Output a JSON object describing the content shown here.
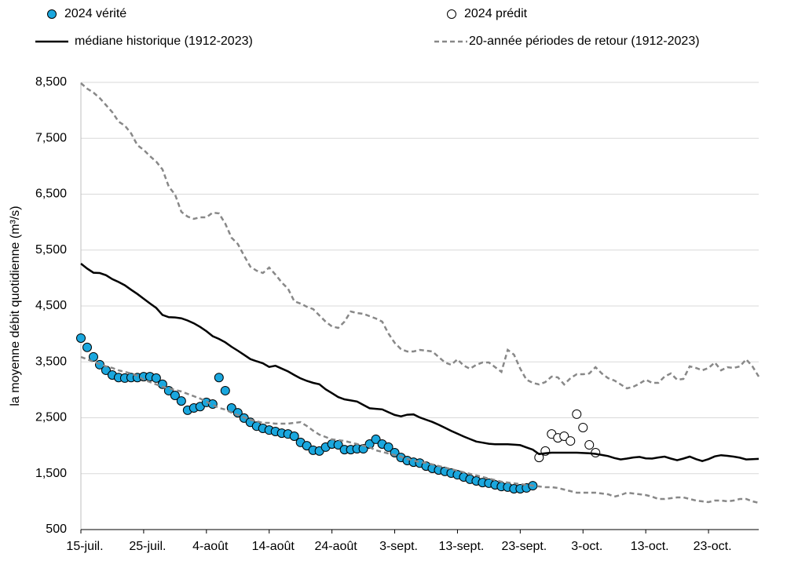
{
  "chart_data": {
    "type": "line",
    "ylabel": "la moyenne débit quotidienne (m³/s)",
    "ylim": [
      500,
      8500
    ],
    "yticks": [
      500,
      {
        "value": 1500,
        "label": "1,500"
      },
      {
        "value": 2500,
        "label": "2,500"
      },
      {
        "value": 3500,
        "label": "3,500"
      },
      {
        "value": 4500,
        "label": "4,500"
      },
      {
        "value": 5500,
        "label": "5,500"
      },
      {
        "value": 6500,
        "label": "6,500"
      },
      {
        "value": 7500,
        "label": "7,500"
      },
      {
        "value": 8500,
        "label": "8,500"
      }
    ],
    "grid": true,
    "categories": [
      "15-juil.",
      null,
      null,
      null,
      null,
      null,
      null,
      null,
      null,
      null,
      "25-juil.",
      null,
      null,
      null,
      null,
      null,
      null,
      null,
      null,
      null,
      "4-août",
      null,
      null,
      null,
      null,
      null,
      null,
      null,
      null,
      null,
      "14-août",
      null,
      null,
      null,
      null,
      null,
      null,
      null,
      null,
      null,
      "24-août",
      null,
      null,
      null,
      null,
      null,
      null,
      null,
      null,
      null,
      "3-sept.",
      null,
      null,
      null,
      null,
      null,
      null,
      null,
      null,
      null,
      "13-sept.",
      null,
      null,
      null,
      null,
      null,
      null,
      null,
      null,
      null,
      "23-sept.",
      null,
      null,
      null,
      null,
      null,
      null,
      null,
      null,
      null,
      "3-oct.",
      null,
      null,
      null,
      null,
      null,
      null,
      null,
      null,
      null,
      "13-oct.",
      null,
      null,
      null,
      null,
      null,
      null,
      null,
      null,
      null,
      "23-oct.",
      null,
      null,
      null,
      null,
      null,
      null,
      null,
      null
    ],
    "series": [
      {
        "name": "2024 vérité",
        "style": "marker-filled",
        "color": "#1aa7de",
        "values": [
          3925,
          3760,
          3590,
          3450,
          3350,
          3265,
          3220,
          3210,
          3220,
          3220,
          3235,
          3235,
          3210,
          3100,
          2985,
          2900,
          2800,
          2635,
          2675,
          2700,
          2775,
          2745,
          3220,
          2985,
          2675,
          2590,
          2495,
          2420,
          2350,
          2310,
          2280,
          2255,
          2225,
          2210,
          2170,
          2060,
          2000,
          1920,
          1905,
          1975,
          2030,
          2015,
          1930,
          1930,
          1945,
          1945,
          2030,
          2115,
          2030,
          1975,
          1875,
          1790,
          1735,
          1705,
          1690,
          1635,
          1595,
          1565,
          1540,
          1510,
          1480,
          1440,
          1400,
          1370,
          1340,
          1330,
          1300,
          1270,
          1260,
          1230,
          1230,
          1245,
          1285,
          null,
          null,
          null,
          null,
          null,
          null,
          null,
          null,
          null,
          null,
          null,
          null,
          null,
          null,
          null,
          null,
          null,
          null,
          null,
          null,
          null,
          null,
          null,
          null,
          null,
          null,
          null,
          null,
          null,
          null,
          null,
          null,
          null,
          null,
          null,
          null
        ]
      },
      {
        "name": "2024 prédit",
        "style": "marker-open",
        "color": "#000000",
        "values": [
          null,
          null,
          null,
          null,
          null,
          null,
          null,
          null,
          null,
          null,
          null,
          null,
          null,
          null,
          null,
          null,
          null,
          null,
          null,
          null,
          null,
          null,
          null,
          null,
          null,
          null,
          null,
          null,
          null,
          null,
          null,
          null,
          null,
          null,
          null,
          null,
          null,
          null,
          null,
          null,
          null,
          null,
          null,
          null,
          null,
          null,
          null,
          null,
          null,
          null,
          null,
          null,
          null,
          null,
          null,
          null,
          null,
          null,
          null,
          null,
          null,
          null,
          null,
          null,
          null,
          null,
          null,
          null,
          null,
          null,
          null,
          null,
          null,
          1790,
          1905,
          2210,
          2140,
          2170,
          2085,
          2565,
          2325,
          2015,
          1875,
          null,
          null,
          null,
          null,
          null,
          null,
          null,
          null,
          null,
          null,
          null,
          null,
          null,
          null,
          null,
          null,
          null,
          null,
          null,
          null,
          null,
          null,
          null,
          null,
          null,
          null
        ]
      },
      {
        "name": "médiane historique (1912-2023)",
        "style": "solid",
        "color": "#000000",
        "values": [
          5258,
          5170,
          5095,
          5090,
          5050,
          4980,
          4930,
          4870,
          4790,
          4715,
          4630,
          4545,
          4465,
          4340,
          4300,
          4295,
          4280,
          4240,
          4190,
          4125,
          4050,
          3960,
          3910,
          3850,
          3770,
          3700,
          3625,
          3550,
          3510,
          3475,
          3410,
          3430,
          3380,
          3330,
          3265,
          3205,
          3160,
          3125,
          3100,
          3010,
          2940,
          2870,
          2830,
          2810,
          2790,
          2730,
          2670,
          2660,
          2650,
          2600,
          2550,
          2525,
          2555,
          2560,
          2505,
          2465,
          2425,
          2375,
          2320,
          2265,
          2215,
          2165,
          2120,
          2075,
          2055,
          2035,
          2025,
          2025,
          2025,
          2020,
          2010,
          1970,
          1930,
          1850,
          1865,
          1875,
          1875,
          1875,
          1875,
          1875,
          1870,
          1865,
          1855,
          1835,
          1815,
          1780,
          1755,
          1770,
          1790,
          1800,
          1775,
          1770,
          1790,
          1805,
          1770,
          1740,
          1770,
          1805,
          1760,
          1725,
          1760,
          1810,
          1830,
          1820,
          1805,
          1785,
          1755,
          1760,
          1765
        ]
      },
      {
        "name": "20-année périodes de retour (1912-2023)",
        "style": "dashed",
        "color": "#888888",
        "values": [
          8486,
          8388,
          8318,
          8220,
          8093,
          7967,
          7798,
          7728,
          7588,
          7377,
          7293,
          7181,
          7082,
          6942,
          6633,
          6493,
          6184,
          6100,
          6058,
          6086,
          6086,
          6170,
          6156,
          5974,
          5721,
          5609,
          5398,
          5202,
          5132,
          5089,
          5188,
          5061,
          4921,
          4809,
          4584,
          4542,
          4486,
          4444,
          4332,
          4219,
          4135,
          4107,
          4219,
          4402,
          4374,
          4360,
          4318,
          4275,
          4219,
          4009,
          3840,
          3728,
          3686,
          3686,
          3714,
          3700,
          3686,
          3588,
          3489,
          3447,
          3546,
          3433,
          3377,
          3447,
          3489,
          3489,
          3405,
          3321,
          3714,
          3630,
          3377,
          3181,
          3125,
          3096,
          3138,
          3237,
          3223,
          3096,
          3209,
          3279,
          3279,
          3293,
          3405,
          3293,
          3209,
          3167,
          3096,
          3026,
          3054,
          3110,
          3181,
          3125,
          3125,
          3237,
          3293,
          3181,
          3195,
          3419,
          3391,
          3349,
          3391,
          3489,
          3349,
          3405,
          3391,
          3419,
          3546,
          3419,
          3237
        ],
        "lower_values": [
          3588,
          3546,
          3503,
          3461,
          3419,
          3391,
          3349,
          3321,
          3293,
          3251,
          3181,
          3139,
          3096,
          3054,
          3026,
          2998,
          2970,
          2928,
          2886,
          2844,
          2788,
          2731,
          2675,
          2647,
          2591,
          2549,
          2507,
          2465,
          2437,
          2409,
          2409,
          2395,
          2395,
          2395,
          2409,
          2423,
          2353,
          2268,
          2198,
          2156,
          2114,
          2100,
          2086,
          2058,
          2030,
          2002,
          1974,
          1918,
          1890,
          1861,
          1833,
          1805,
          1763,
          1735,
          1707,
          1693,
          1665,
          1637,
          1609,
          1581,
          1553,
          1525,
          1497,
          1468,
          1440,
          1412,
          1384,
          1356,
          1342,
          1328,
          1314,
          1300,
          1286,
          1272,
          1258,
          1258,
          1244,
          1216,
          1188,
          1160,
          1160,
          1160,
          1160,
          1146,
          1132,
          1090,
          1118,
          1160,
          1146,
          1132,
          1118,
          1090,
          1047,
          1047,
          1061,
          1075,
          1075,
          1047,
          1019,
          1005,
          991,
          1019,
          1019,
          1005,
          1019,
          1047,
          1047,
          1005,
          977
        ]
      }
    ]
  }
}
